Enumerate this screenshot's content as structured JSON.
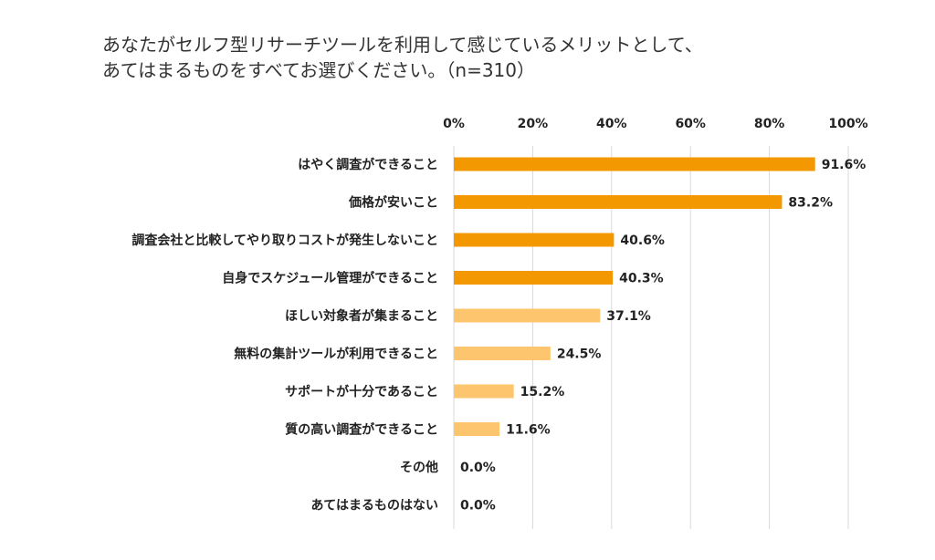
{
  "chart_data": {
    "type": "bar",
    "orientation": "horizontal",
    "title": "あなたがセルフ型リサーチツールを利用して感じているメリットとして、",
    "subtitle": "あてはまるものをすべてお選びください。（n=310）",
    "categories": [
      "はやく調査ができること",
      "価格が安いこと",
      "調査会社と比較してやり取りコストが発生しないこと",
      "自身でスケジュール管理ができること",
      "ほしい対象者が集まること",
      "無料の集計ツールが利用できること",
      "サポートが十分であること",
      "質の高い調査ができること",
      "その他",
      "あてはまるものはない"
    ],
    "values": [
      91.6,
      83.2,
      40.6,
      40.3,
      37.1,
      24.5,
      15.2,
      11.6,
      0.0,
      0.0
    ],
    "value_labels": [
      "91.6%",
      "83.2%",
      "40.6%",
      "40.3%",
      "37.1%",
      "24.5%",
      "15.2%",
      "11.6%",
      "0.0%",
      "0.0%"
    ],
    "bar_colors": [
      "#f39800",
      "#f39800",
      "#f39800",
      "#f39800",
      "#fdc56d",
      "#fdc56d",
      "#fdc56d",
      "#fdc56d",
      "#fdc56d",
      "#fdc56d"
    ],
    "xlim": [
      0,
      100
    ],
    "x_ticks": [
      0,
      20,
      40,
      60,
      80,
      100
    ],
    "x_tick_labels": [
      "0%",
      "20%",
      "40%",
      "60%",
      "80%",
      "100%"
    ],
    "x_axis_position": "top",
    "grid": true,
    "legend": "none"
  }
}
